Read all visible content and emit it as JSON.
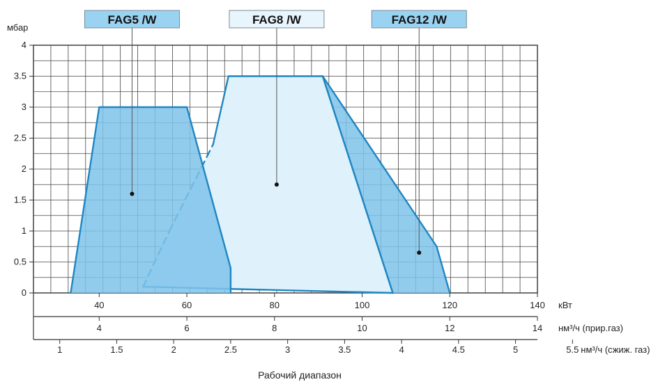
{
  "chart_data": {
    "type": "area",
    "ylabel": "мбар",
    "ylim": [
      0,
      4
    ],
    "yticks": [
      "0",
      "0.5",
      "1",
      "1.5",
      "2",
      "2.5",
      "3",
      "3.5",
      "4"
    ],
    "xlim": [
      25,
      140
    ],
    "axes": [
      {
        "unit": "кВт",
        "ticks": [
          {
            "v": 40,
            "label": "40"
          },
          {
            "v": 60,
            "label": "60"
          },
          {
            "v": 80,
            "label": "80"
          },
          {
            "v": 100,
            "label": "100"
          },
          {
            "v": 120,
            "label": "120"
          },
          {
            "v": 140,
            "label": "140"
          }
        ]
      },
      {
        "unit": "нм³/ч (прир.газ)",
        "ticks": [
          {
            "v": 40,
            "label": "4"
          },
          {
            "v": 60,
            "label": "6"
          },
          {
            "v": 80,
            "label": "8"
          },
          {
            "v": 100,
            "label": "10"
          },
          {
            "v": 120,
            "label": "12"
          },
          {
            "v": 140,
            "label": "14"
          }
        ]
      },
      {
        "unit": "нм³/ч (сжиж. газ)",
        "ticks": [
          {
            "v": 31,
            "label": "1"
          },
          {
            "v": 44,
            "label": "1.5"
          },
          {
            "v": 57,
            "label": "2"
          },
          {
            "v": 70,
            "label": "2.5"
          },
          {
            "v": 83,
            "label": "3"
          },
          {
            "v": 96,
            "label": "3.5"
          },
          {
            "v": 109,
            "label": "4"
          },
          {
            "v": 122,
            "label": "4.5"
          },
          {
            "v": 135,
            "label": "5"
          },
          {
            "v": 148,
            "label": "5.5"
          }
        ]
      }
    ],
    "caption": "Рабочий диапазон",
    "grid": true,
    "series": [
      {
        "name": "FAG8 /W",
        "fill": "#dff2fb",
        "tag_bg": "#e8f5fc",
        "points": [
          [
            50,
            0.1
          ],
          [
            56,
            1
          ],
          [
            66,
            2.4
          ],
          [
            69.5,
            3.5
          ],
          [
            91,
            3.5
          ],
          [
            107,
            0
          ]
        ],
        "dashed_until": 2,
        "marker": [
          80.5,
          1.75
        ],
        "tag_x": 80.5
      },
      {
        "name": "FAG5 /W",
        "fill": "#7fc3ea",
        "fill_opacity": 0.85,
        "tag_bg": "#9ad2f2",
        "points": [
          [
            33.5,
            0
          ],
          [
            40,
            3
          ],
          [
            60,
            3
          ],
          [
            70,
            0.4
          ],
          [
            70,
            0
          ]
        ],
        "marker": [
          47.5,
          1.6
        ],
        "tag_x": 47.5
      },
      {
        "name": "FAG12 /W",
        "fill": "#7fc3ea",
        "fill_opacity": 0.85,
        "tag_bg": "#9ad2f2",
        "points": [
          [
            91,
            3.5
          ],
          [
            117,
            0.75
          ],
          [
            120,
            0
          ],
          [
            107,
            0
          ]
        ],
        "marker": [
          113,
          0.65
        ],
        "tag_x": 113
      }
    ]
  }
}
